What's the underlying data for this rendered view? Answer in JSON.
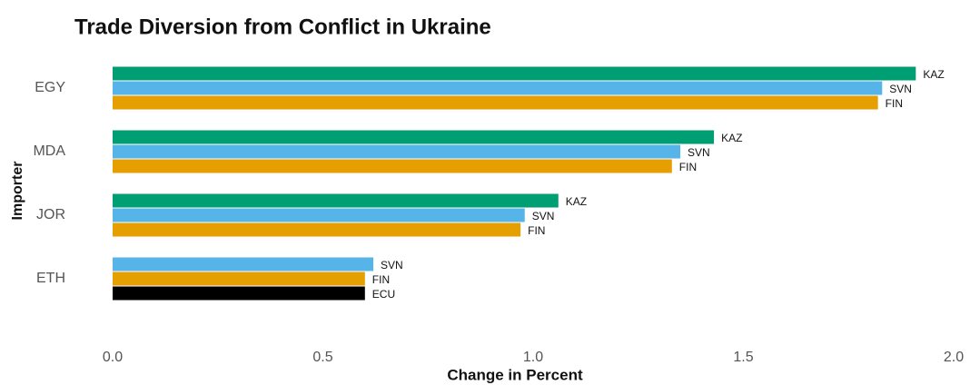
{
  "chart_data": {
    "type": "grouped-hbar",
    "title": "Trade Diversion from Conflict in Ukraine",
    "x_label": "Change in Percent",
    "y_label": "Importer",
    "categories": [
      "EGY",
      "MDA",
      "JOR",
      "ETH"
    ],
    "series": [
      {
        "name": "KAZ",
        "color": "#009e73",
        "values": [
          1.91,
          1.43,
          1.06,
          null
        ]
      },
      {
        "name": "SVN",
        "color": "#56b4e9",
        "values": [
          1.83,
          1.35,
          0.98,
          0.62
        ]
      },
      {
        "name": "FIN",
        "color": "#e69f00",
        "values": [
          1.82,
          1.33,
          0.97,
          0.6
        ]
      },
      {
        "name": "ECU",
        "color": "#000000",
        "values": [
          null,
          null,
          null,
          0.6
        ]
      }
    ],
    "xlim": [
      0,
      2
    ],
    "xticks": [
      {
        "value": 0,
        "label": "0.0"
      },
      {
        "value": 0.5,
        "label": "0.5"
      },
      {
        "value": 1,
        "label": "1.0"
      },
      {
        "value": 1.5,
        "label": "1.5"
      },
      {
        "value": 2,
        "label": "2.0"
      }
    ],
    "grid": false
  }
}
